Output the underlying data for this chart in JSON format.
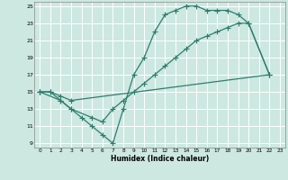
{
  "xlabel": "Humidex (Indice chaleur)",
  "bg_color": "#cce8e0",
  "grid_color": "#ffffff",
  "line_color": "#2e7d6e",
  "xlim": [
    -0.5,
    23.5
  ],
  "ylim": [
    8.5,
    25.5
  ],
  "xticks": [
    0,
    1,
    2,
    3,
    4,
    5,
    6,
    7,
    8,
    9,
    10,
    11,
    12,
    13,
    14,
    15,
    16,
    17,
    18,
    19,
    20,
    21,
    22,
    23
  ],
  "yticks": [
    9,
    11,
    13,
    15,
    17,
    19,
    21,
    23,
    25
  ],
  "line1_x": [
    0,
    1,
    2,
    3,
    4,
    5,
    6,
    7,
    8,
    9,
    10,
    11,
    12,
    13,
    14,
    15,
    16,
    17,
    18,
    19,
    20,
    22
  ],
  "line1_y": [
    15,
    15,
    14,
    13,
    12,
    11,
    10,
    9,
    13,
    17,
    19,
    22,
    24,
    24.5,
    25,
    25,
    24.5,
    24.5,
    24.5,
    24,
    23,
    17
  ],
  "line2_x": [
    0,
    1,
    2,
    3,
    22
  ],
  "line2_y": [
    15,
    15,
    14.5,
    14,
    17
  ],
  "line3_x": [
    0,
    2,
    3,
    5,
    6,
    7,
    8,
    9,
    10,
    11,
    12,
    13,
    14,
    15,
    16,
    17,
    18,
    19,
    20,
    22
  ],
  "line3_y": [
    15,
    14,
    13,
    12,
    11.5,
    13,
    14,
    15,
    16,
    17,
    18,
    19,
    20,
    21,
    21.5,
    22,
    22.5,
    23,
    23,
    17
  ]
}
